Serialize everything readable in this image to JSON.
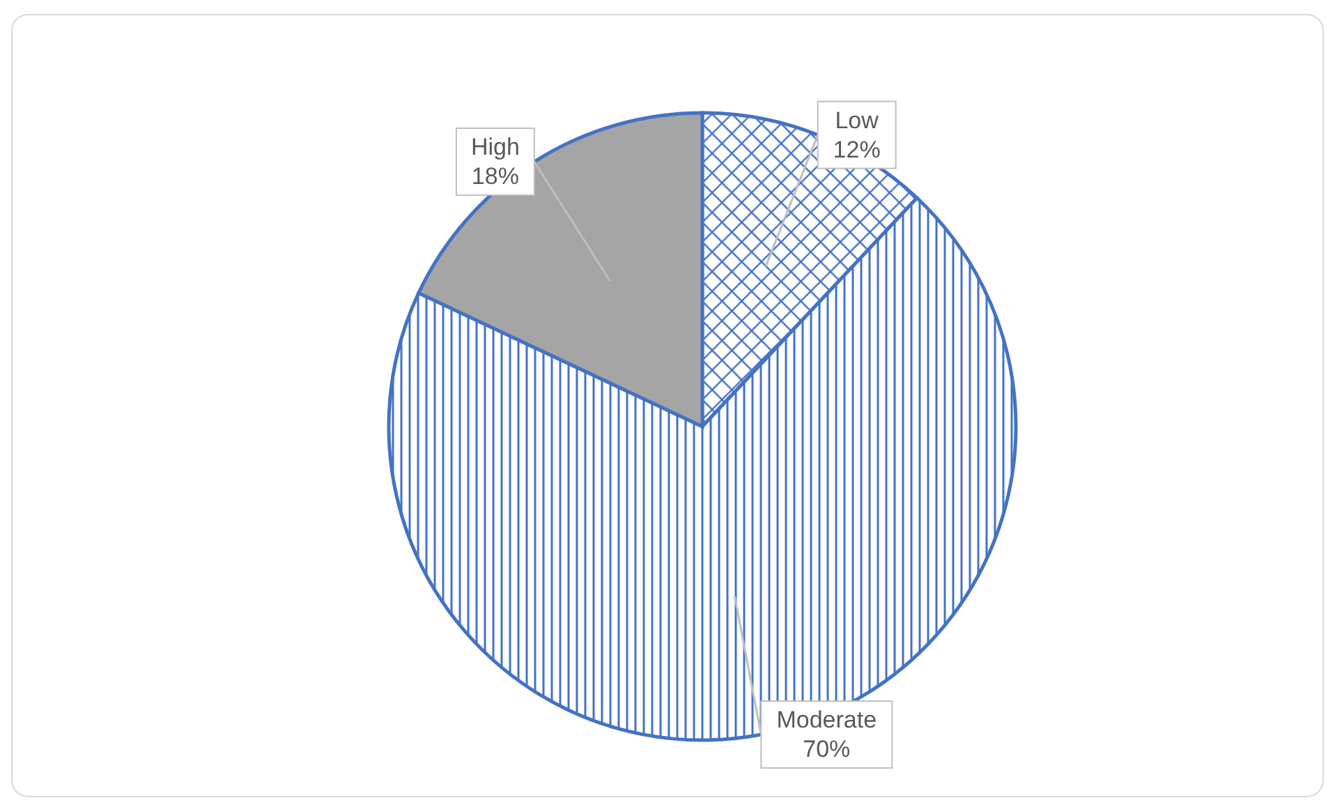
{
  "chart_data": {
    "type": "pie",
    "categories": [
      "Low",
      "Moderate",
      "High"
    ],
    "values": [
      12,
      70,
      18
    ],
    "colors": [
      "#4472c4",
      "#4472c4",
      "#a5a5a5"
    ],
    "value_labels": [
      "12%",
      "70%",
      "18%"
    ]
  }
}
